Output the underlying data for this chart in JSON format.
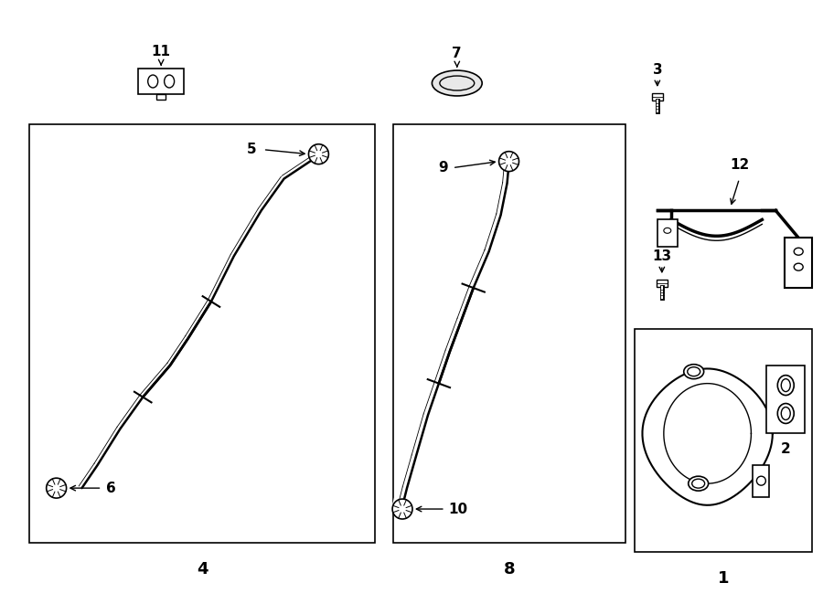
{
  "bg_color": "#ffffff",
  "line_color": "#000000",
  "figsize": [
    9.0,
    6.61
  ],
  "dpi": 100
}
